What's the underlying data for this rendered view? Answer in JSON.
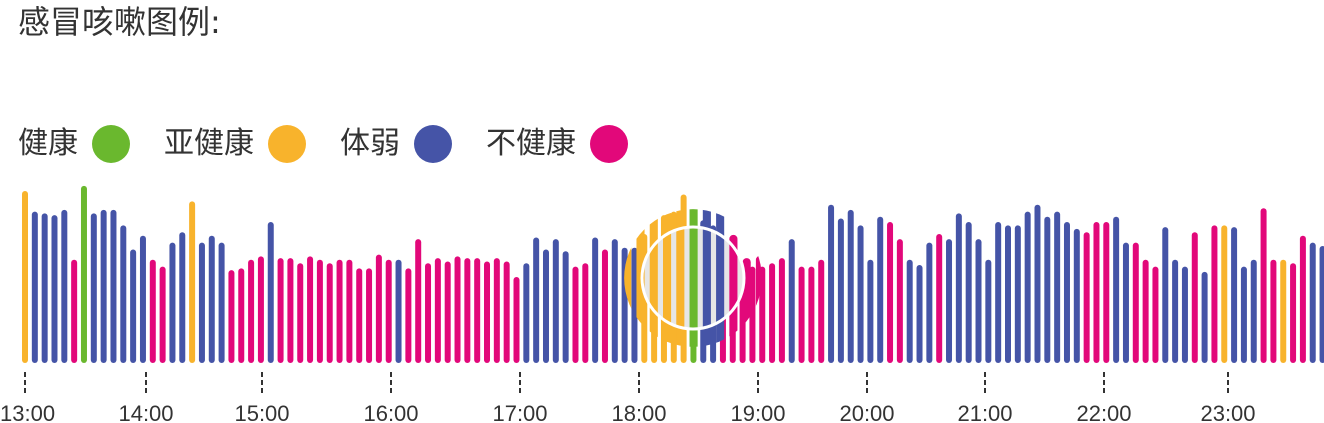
{
  "title": "感冒咳嗽图例:",
  "legend": [
    {
      "label": "健康",
      "color": "#6ab82e"
    },
    {
      "label": "亚健康",
      "color": "#f8b32c"
    },
    {
      "label": "体弱",
      "color": "#4554a7"
    },
    {
      "label": "不健康",
      "color": "#e2087a"
    }
  ],
  "chart_data": {
    "type": "bar",
    "x_ticks": [
      "13:00",
      "14:00",
      "15:00",
      "16:00",
      "17:00",
      "18:00",
      "19:00",
      "20:00",
      "21:00",
      "22:00",
      "23:00"
    ],
    "x_range": [
      "13:00",
      "23:50"
    ],
    "categories_note": "bars every 5 minutes",
    "ylim": [
      0,
      1
    ],
    "colors": {
      "G": "#6ab82e",
      "Y": "#f8b32c",
      "B": "#4554a7",
      "P": "#e2087a"
    },
    "series": [
      {
        "values": [
          1.0,
          0.88,
          0.87,
          0.86,
          0.89,
          0.6,
          1.03,
          0.87,
          0.89,
          0.89,
          0.8,
          0.66,
          0.74,
          0.6,
          0.56,
          0.7,
          0.76,
          0.94,
          0.7,
          0.74,
          0.7,
          0.54,
          0.55,
          0.6,
          0.62,
          0.82,
          0.61,
          0.61,
          0.58,
          0.62,
          0.6,
          0.58,
          0.6,
          0.6,
          0.55,
          0.55,
          0.63,
          0.6,
          0.6,
          0.55,
          0.72,
          0.58,
          0.61,
          0.59,
          0.62,
          0.61,
          0.61,
          0.59,
          0.61,
          0.59,
          0.5,
          0.58,
          0.73,
          0.66,
          0.72,
          0.65,
          0.56,
          0.58,
          0.73,
          0.66,
          0.72,
          0.67,
          0.67,
          0.75,
          0.78,
          0.86,
          0.88,
          0.98,
          0.85,
          0.83,
          0.8,
          0.68,
          0.58,
          0.59,
          0.56,
          0.56,
          0.58,
          0.61,
          0.72,
          0.56,
          0.56,
          0.6,
          0.92,
          0.84,
          0.89,
          0.8,
          0.6,
          0.85,
          0.82,
          0.72,
          0.6,
          0.57,
          0.7,
          0.75,
          0.72,
          0.87,
          0.82,
          0.72,
          0.6,
          0.82,
          0.8,
          0.8,
          0.88,
          0.92,
          0.85,
          0.88,
          0.82,
          0.78,
          0.76,
          0.82,
          0.82,
          0.85,
          0.7,
          0.7,
          0.6,
          0.56,
          0.79,
          0.6,
          0.56,
          0.76,
          0.53,
          0.8,
          0.8,
          0.79,
          0.56,
          0.6,
          0.9,
          0.6,
          0.6,
          0.58,
          0.74,
          0.7,
          0.68,
          0.61,
          0.75
        ],
        "colors": "YBBBBPGBBBBBBPPBBYBBBPPPPBPPPPPPPPPPPPBPPPPPPPPPPPPBBBBBPPBPBBBYYYYYGBBPPPPPPPBPPPBBBBBBPPBBBPBBBBBBBBBBBBBBPPPBBPPPBBBPBPYBBBPPYPPBBBBB"
      }
    ]
  }
}
